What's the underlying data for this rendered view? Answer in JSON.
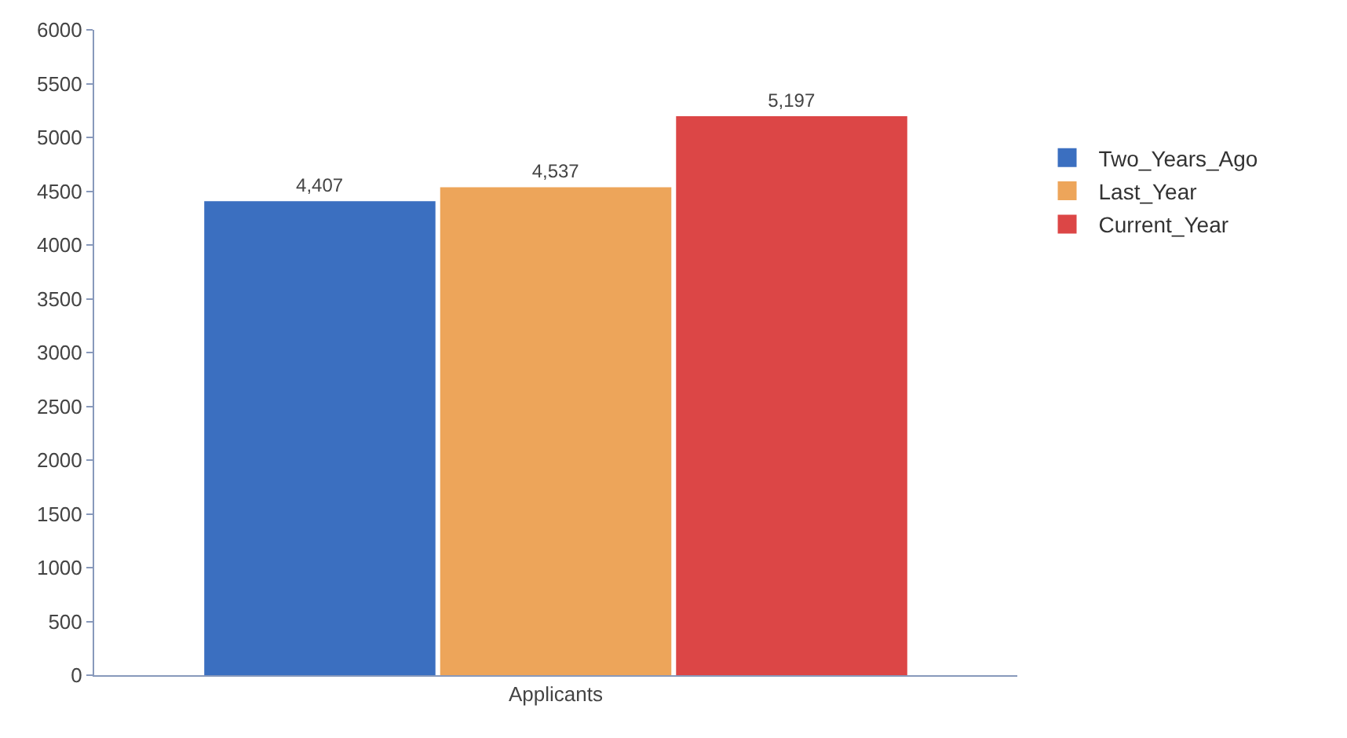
{
  "chart_data": {
    "type": "bar",
    "categories": [
      "Applicants"
    ],
    "series": [
      {
        "name": "Two_Years_Ago",
        "color": "#3b6fc0",
        "values": [
          4407
        ]
      },
      {
        "name": "Last_Year",
        "color": "#eda55a",
        "values": [
          4537
        ]
      },
      {
        "name": "Current_Year",
        "color": "#dc4646",
        "values": [
          5197
        ]
      }
    ],
    "value_labels": [
      [
        "4,407"
      ],
      [
        "4,537"
      ],
      [
        "5,197"
      ]
    ],
    "ylim": [
      0,
      6000
    ],
    "yticks": [
      0,
      500,
      1000,
      1500,
      2000,
      2500,
      3000,
      3500,
      4000,
      4500,
      5000,
      5500,
      6000
    ],
    "legend": "right"
  }
}
